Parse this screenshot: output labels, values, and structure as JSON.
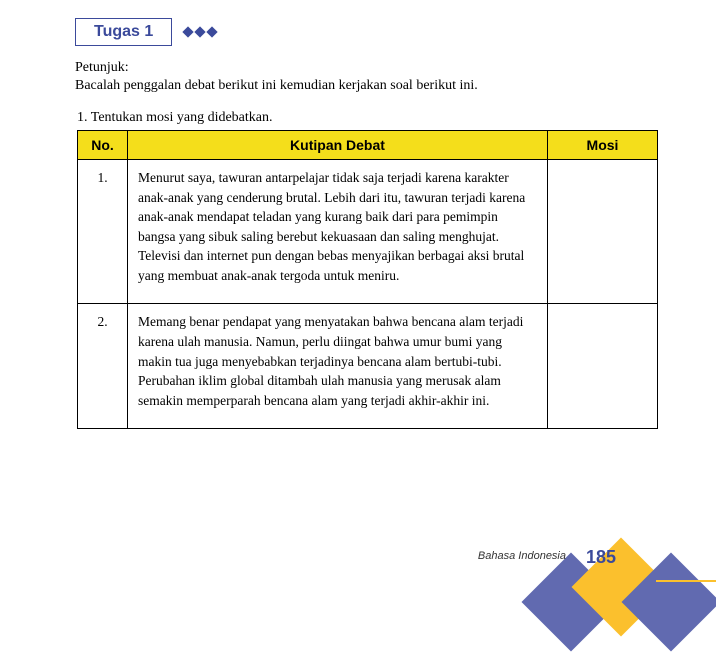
{
  "task": {
    "badge": "Tugas 1",
    "instruction_label": "Petunjuk:",
    "instruction_text": "Bacalah penggalan debat berikut ini kemudian kerjakan soal berikut ini.",
    "question": "1.   Tentukan mosi yang didebatkan."
  },
  "table": {
    "headers": {
      "no": "No.",
      "kutipan": "Kutipan Debat",
      "mosi": "Mosi"
    },
    "rows": [
      {
        "no": "1.",
        "kutipan": "Menurut saya, tawuran antarpelajar tidak saja terjadi karena karakter anak-anak yang cenderung brutal. Lebih dari itu, tawuran terjadi karena anak-anak mendapat teladan yang kurang baik dari para pemimpin bangsa yang sibuk saling berebut kekuasaan dan saling menghujat. Televisi dan internet pun dengan bebas menyajikan berbagai aksi brutal yang membuat anak-anak tergoda untuk meniru.",
        "mosi": ""
      },
      {
        "no": "2.",
        "kutipan": "Memang benar pendapat yang menyatakan bahwa bencana alam terjadi karena ulah manusia. Namun, perlu diingat bahwa umur bumi yang makin tua juga menyebabkan terjadinya bencana alam bertubi-tubi. Perubahan iklim global ditambah ulah manusia yang merusak alam semakin memperparah bencana alam yang terjadi akhir-akhir ini.",
        "mosi": ""
      }
    ]
  },
  "footer": {
    "subject": "Bahasa Indonesia",
    "page": "185"
  },
  "colors": {
    "primary": "#3b4a9b",
    "accent_yellow": "#f4de1b",
    "shape_yellow": "#fbc02d",
    "shape_purple": "#616ab0"
  }
}
